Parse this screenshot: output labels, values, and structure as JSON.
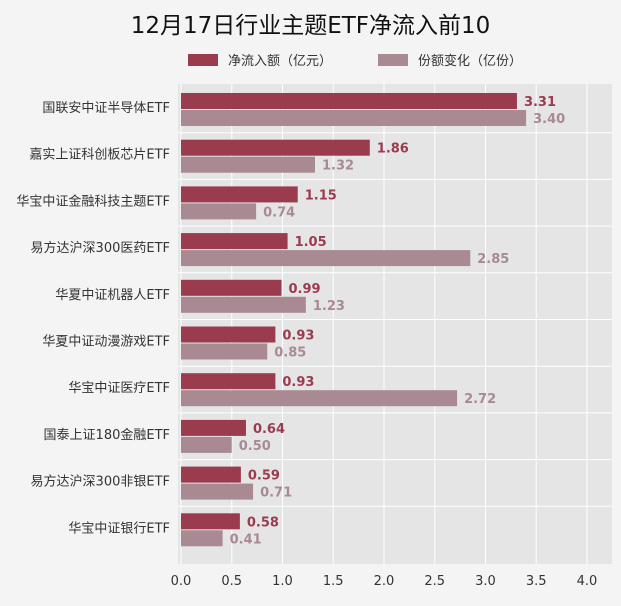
{
  "chart_data": {
    "type": "bar",
    "orientation": "horizontal",
    "title": "12月17日行业主题ETF净流入前10",
    "categories": [
      "国联安中证半导体ETF",
      "嘉实上证科创板芯片ETF",
      "华宝中证金融科技主题ETF",
      "易方达沪深300医药ETF",
      "华夏中证机器人ETF",
      "华夏中证动漫游戏ETF",
      "华宝中证医疗ETF",
      "国泰上证180金融ETF",
      "易方达沪深300非银ETF",
      "华宝中证银行ETF"
    ],
    "series": [
      {
        "name": "净流入额（亿元）",
        "color": "#9a3b4e",
        "values": [
          3.31,
          1.86,
          1.15,
          1.05,
          0.99,
          0.93,
          0.93,
          0.64,
          0.59,
          0.58
        ],
        "labels": [
          "3.31",
          "1.86",
          "1.15",
          "1.05",
          "0.99",
          "0.93",
          "0.93",
          "0.64",
          "0.59",
          "0.58"
        ]
      },
      {
        "name": "份额变化（亿份）",
        "color": "#a98a93",
        "values": [
          3.4,
          1.32,
          0.74,
          2.85,
          1.23,
          0.85,
          2.72,
          0.5,
          0.71,
          0.41
        ],
        "labels": [
          "3.40",
          "1.32",
          "0.74",
          "2.85",
          "1.23",
          "0.85",
          "2.72",
          "0.50",
          "0.71",
          "0.41"
        ]
      }
    ],
    "xlim": [
      0,
      4.2
    ],
    "xticks": [
      0.0,
      0.5,
      1.0,
      1.5,
      2.0,
      2.5,
      3.0,
      3.5,
      4.0
    ],
    "xtick_labels": [
      "0.0",
      "0.5",
      "1.0",
      "1.5",
      "2.0",
      "2.5",
      "3.0",
      "3.5",
      "4.0"
    ],
    "grid": true,
    "legend_position": "top",
    "background": "#e5e5e5",
    "xlabel": "",
    "ylabel": ""
  }
}
